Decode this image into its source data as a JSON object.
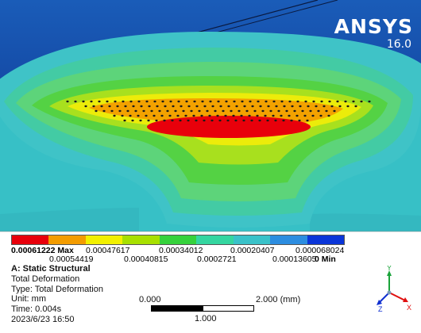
{
  "app": {
    "brand": "ANSYS",
    "version": "16.0"
  },
  "colors": {
    "background_top": "#0a4a9a",
    "background_blue": "#163e94",
    "contour": [
      "#e8000b",
      "#f39c00",
      "#f2f000",
      "#a8e000",
      "#36d23c",
      "#35d6a0",
      "#3ac2c9",
      "#2c8de0",
      "#0a35d8"
    ]
  },
  "legend": {
    "top_labels": [
      "0.00061222 Max",
      "0.00047617",
      "0.00034012",
      "0.00020407",
      "0.000068024"
    ],
    "bottom_labels": [
      "0.00054419",
      "0.00040815",
      "0.0002721",
      "0.00013605",
      "0 Min"
    ]
  },
  "info": {
    "title": "A: Static Structural",
    "result": "Total Deformation",
    "type": "Type: Total Deformation",
    "unit": "Unit: mm",
    "time": "Time: 0.004s",
    "date": "2023/6/23 16:50"
  },
  "scale": {
    "left": "0.000",
    "right": "2.000 (mm)",
    "mid": "1.000"
  },
  "triad": {
    "x": "X",
    "y": "Y",
    "z": "Z"
  }
}
